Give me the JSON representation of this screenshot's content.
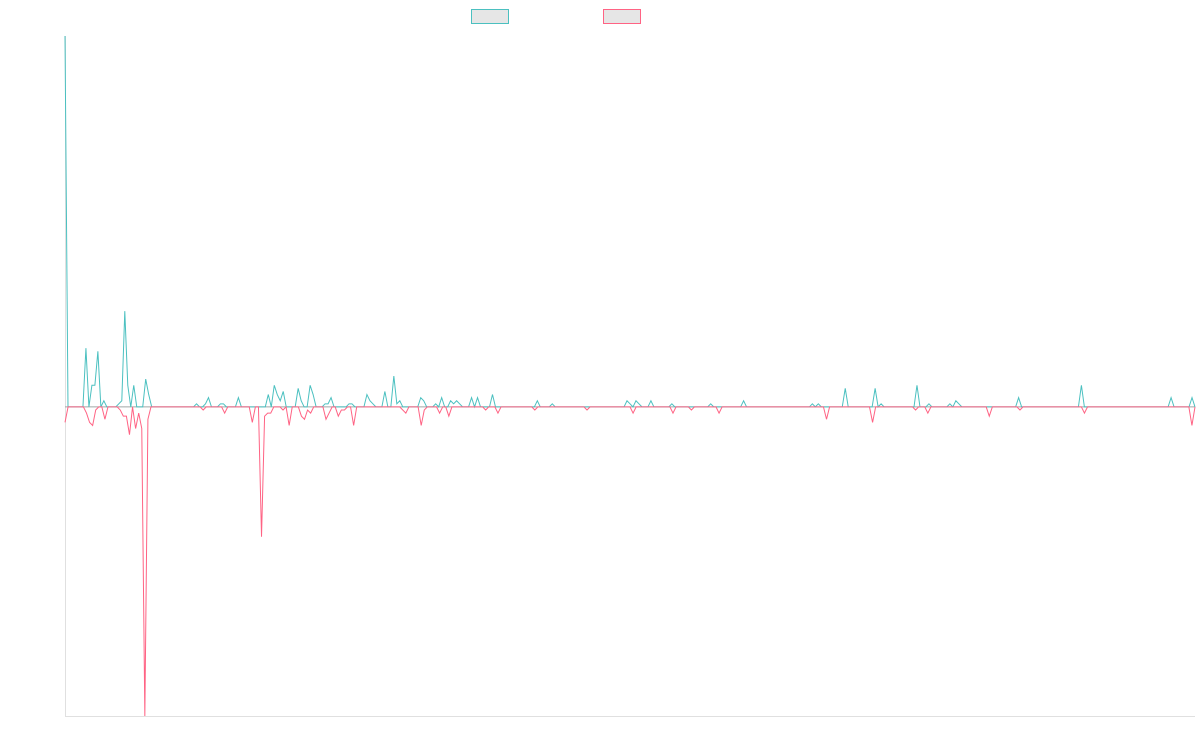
{
  "chart_data": {
    "type": "line",
    "title": "",
    "xlabel": "",
    "ylabel": "",
    "grid": false,
    "legend_position": "top",
    "ylim": [
      -1.0,
      1.2
    ],
    "series": [
      {
        "name": "",
        "color": "#4bc0c0",
        "values": [
          1.2,
          0,
          0,
          0,
          0,
          0,
          0,
          0.19,
          0,
          0.07,
          0.07,
          0.18,
          0,
          0.02,
          0,
          0,
          0,
          0,
          0.01,
          0.02,
          0.31,
          0.07,
          0,
          0.07,
          0,
          0,
          0,
          0.09,
          0.04,
          0,
          0,
          0,
          0,
          0,
          0,
          0,
          0,
          0,
          0,
          0,
          0,
          0,
          0,
          0,
          0.01,
          0,
          0,
          0.01,
          0.03,
          0,
          0,
          0,
          0.01,
          0.01,
          0,
          0,
          0,
          0,
          0.03,
          0,
          0,
          0,
          0,
          0,
          0,
          0,
          0,
          0,
          0.04,
          0,
          0.07,
          0.04,
          0.02,
          0.05,
          0,
          0,
          0,
          0,
          0.06,
          0.02,
          0,
          0,
          0.07,
          0.04,
          0,
          0,
          0,
          0.01,
          0.01,
          0.03,
          0,
          0,
          0,
          0,
          0,
          0.01,
          0.01,
          0,
          0,
          0,
          0,
          0.04,
          0.02,
          0.01,
          0,
          0,
          0,
          0.05,
          0,
          0,
          0.1,
          0.01,
          0.02,
          0,
          0,
          0,
          0,
          0,
          0,
          0.03,
          0.02,
          0,
          0,
          0,
          0.01,
          0,
          0.03,
          0,
          0,
          0.02,
          0.01,
          0.02,
          0.01,
          0,
          0,
          0,
          0.03,
          0,
          0.03,
          0,
          0,
          0,
          0,
          0.04,
          0,
          0,
          0,
          0,
          0,
          0,
          0,
          0,
          0,
          0,
          0,
          0,
          0,
          0,
          0.02,
          0,
          0,
          0,
          0,
          0.01,
          0,
          0,
          0,
          0,
          0,
          0,
          0,
          0,
          0,
          0,
          0,
          0,
          0,
          0,
          0,
          0,
          0,
          0,
          0,
          0,
          0,
          0,
          0,
          0,
          0.02,
          0.01,
          0,
          0.02,
          0.01,
          0,
          0,
          0,
          0.02,
          0,
          0,
          0,
          0,
          0,
          0,
          0.01,
          0,
          0,
          0,
          0,
          0,
          0,
          0,
          0,
          0,
          0,
          0,
          0,
          0.01,
          0,
          0,
          0,
          0,
          0,
          0,
          0,
          0,
          0,
          0,
          0.02,
          0,
          0,
          0,
          0,
          0,
          0,
          0,
          0,
          0,
          0,
          0,
          0,
          0,
          0,
          0,
          0,
          0,
          0,
          0,
          0,
          0,
          0,
          0.01,
          0,
          0.01,
          0,
          0,
          0,
          0,
          0,
          0,
          0,
          0,
          0.06,
          0,
          0,
          0,
          0,
          0,
          0,
          0,
          0,
          0,
          0.06,
          0,
          0.01,
          0,
          0,
          0,
          0,
          0,
          0,
          0,
          0,
          0,
          0,
          0,
          0.07,
          0,
          0,
          0,
          0.01,
          0,
          0,
          0,
          0,
          0,
          0,
          0.01,
          0,
          0.02,
          0.01,
          0,
          0,
          0,
          0,
          0,
          0,
          0,
          0,
          0,
          0,
          0,
          0,
          0,
          0,
          0,
          0,
          0,
          0,
          0,
          0.03,
          0,
          0,
          0,
          0,
          0,
          0,
          0,
          0,
          0,
          0,
          0,
          0,
          0,
          0,
          0,
          0,
          0,
          0,
          0,
          0,
          0.07,
          0,
          0,
          0,
          0,
          0,
          0,
          0,
          0,
          0,
          0,
          0,
          0,
          0,
          0,
          0,
          0,
          0,
          0,
          0,
          0,
          0,
          0,
          0,
          0,
          0,
          0,
          0,
          0,
          0,
          0.03,
          0,
          0,
          0,
          0,
          0,
          0,
          0.03,
          0
        ]
      },
      {
        "name": "",
        "color": "#ff6384",
        "values": [
          -0.05,
          0,
          0,
          0,
          0,
          0,
          0,
          -0.02,
          -0.05,
          -0.06,
          -0.01,
          0,
          0,
          -0.04,
          0,
          0,
          0,
          0,
          -0.01,
          -0.03,
          -0.03,
          -0.09,
          0,
          -0.07,
          -0.02,
          -0.07,
          -1.0,
          -0.04,
          0,
          0,
          0,
          0,
          0,
          0,
          0,
          0,
          0,
          0,
          0,
          0,
          0,
          0,
          0,
          0,
          0,
          -0.01,
          0,
          0,
          0,
          0,
          0,
          0,
          -0.02,
          0,
          0,
          0,
          0,
          0,
          0,
          0,
          0,
          -0.05,
          0,
          0,
          -0.42,
          -0.03,
          -0.02,
          -0.02,
          0,
          0,
          0,
          -0.01,
          0,
          -0.06,
          0,
          0,
          0,
          -0.03,
          -0.04,
          -0.01,
          -0.02,
          0,
          0,
          0,
          0,
          -0.04,
          -0.02,
          0,
          0,
          -0.03,
          -0.01,
          -0.01,
          0,
          0,
          -0.06,
          0,
          0,
          0,
          0,
          0,
          0,
          0,
          0,
          0,
          0,
          0,
          0,
          0,
          0,
          0,
          -0.01,
          -0.02,
          0,
          0,
          0,
          0,
          -0.06,
          -0.01,
          0,
          0,
          0,
          0,
          -0.02,
          0,
          0,
          -0.03,
          0,
          0,
          0,
          0,
          0,
          0,
          0,
          0,
          0,
          0,
          0,
          -0.01,
          0,
          0,
          0,
          -0.02,
          0,
          0,
          0,
          0,
          0,
          0,
          0,
          0,
          0,
          0,
          0,
          -0.01,
          0,
          0,
          0,
          0,
          0,
          0,
          0,
          0,
          0,
          0,
          0,
          0,
          0,
          0,
          0,
          0,
          -0.01,
          0,
          0,
          0,
          0,
          0,
          0,
          0,
          0,
          0,
          0,
          0,
          0,
          0,
          0,
          -0.02,
          0,
          0,
          0,
          0,
          0,
          0,
          0,
          0,
          0,
          0,
          0,
          0,
          -0.02,
          0,
          0,
          0,
          0,
          0,
          -0.01,
          0,
          0,
          0,
          0,
          0,
          0,
          0,
          0,
          -0.02,
          0,
          0,
          0,
          0,
          0,
          0,
          0,
          0,
          0,
          0,
          0,
          0,
          0,
          0,
          0,
          0,
          0,
          0,
          0,
          0,
          0,
          0,
          0,
          0,
          0,
          0,
          0,
          0,
          0,
          0,
          0,
          0,
          0,
          0,
          -0.04,
          0,
          0,
          0,
          0,
          0,
          0,
          0,
          0,
          0,
          0,
          0,
          0,
          0,
          0,
          -0.05,
          0,
          0,
          0,
          0,
          0,
          0,
          0,
          0,
          0,
          0,
          0,
          0,
          0,
          -0.01,
          0,
          0,
          0,
          -0.02,
          0,
          0,
          0,
          0,
          0,
          0,
          0,
          0,
          0,
          0,
          0,
          0,
          0,
          0,
          0,
          0,
          0,
          0,
          0,
          -0.03,
          0,
          0,
          0,
          0,
          0,
          0,
          0,
          0,
          0,
          -0.01,
          0,
          0,
          0,
          0,
          0,
          0,
          0,
          0,
          0,
          0,
          0,
          0,
          0,
          0,
          0,
          0,
          0,
          0,
          0,
          0,
          -0.02,
          0,
          0,
          0,
          0,
          0,
          0,
          0,
          0,
          0,
          0,
          0,
          0,
          0,
          0,
          0,
          0,
          0,
          0,
          0,
          0,
          0,
          0,
          0,
          0,
          0,
          0,
          0,
          0,
          0,
          0,
          0,
          0,
          0,
          0,
          -0.06,
          0
        ]
      }
    ]
  }
}
